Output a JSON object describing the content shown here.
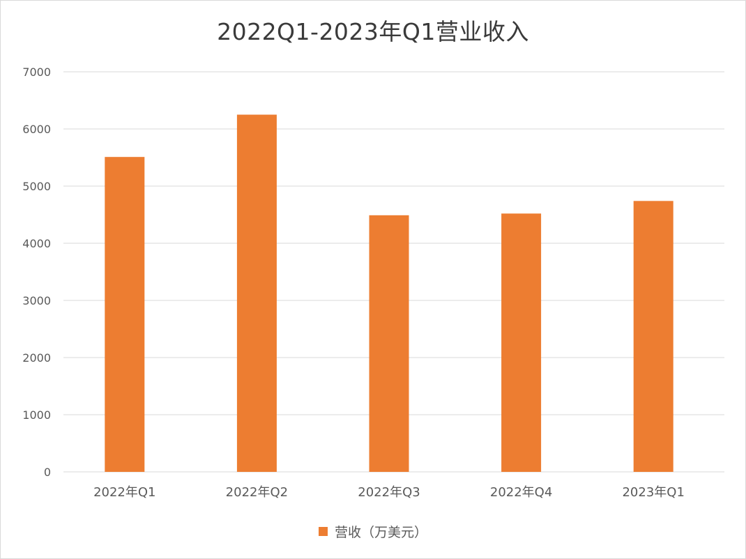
{
  "chart_data": {
    "type": "bar",
    "title": "2022Q1-2023年Q1营业收入",
    "categories": [
      "2022年Q1",
      "2022年Q2",
      "2022年Q3",
      "2022年Q4",
      "2023年Q1"
    ],
    "series": [
      {
        "name": "营收（万美元）",
        "values": [
          5510,
          6250,
          4490,
          4520,
          4740
        ],
        "color": "#ed7d31"
      }
    ],
    "ylim": [
      0,
      7000
    ],
    "yticks": [
      0,
      1000,
      2000,
      3000,
      4000,
      5000,
      6000,
      7000
    ],
    "grid": true,
    "legend_position": "bottom",
    "gridline_color": "#d9d9d9"
  }
}
